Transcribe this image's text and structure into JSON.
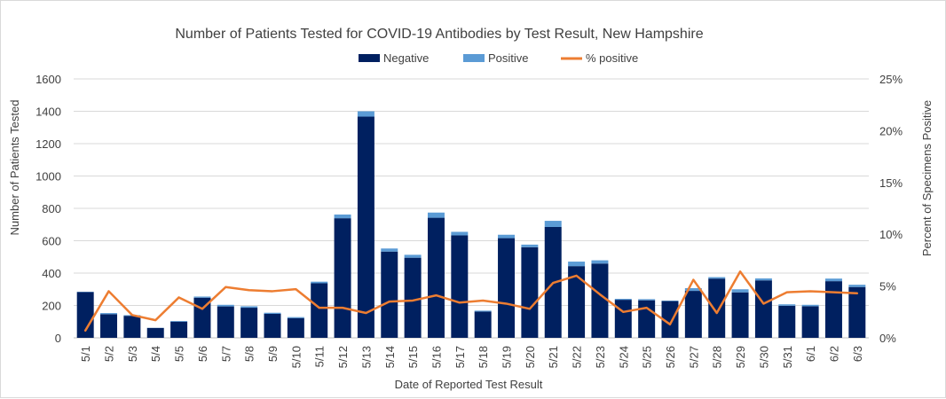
{
  "chart_data": {
    "type": "bar",
    "stacked": true,
    "title": "Number of Patients Tested for COVID-19 Antibodies by Test Result, New Hampshire",
    "xlabel": "Date of Reported Test Result",
    "ylabel": "Number of Patients Tested",
    "y2label": "Percent of Specimens Positive",
    "ylim": [
      0,
      1600
    ],
    "y_ticks": [
      "0",
      "200",
      "400",
      "600",
      "800",
      "1000",
      "1200",
      "1400",
      "1600"
    ],
    "y2lim": [
      0,
      25
    ],
    "y2_ticks": [
      "0%",
      "5%",
      "10%",
      "15%",
      "20%",
      "25%"
    ],
    "legend_position": "top-center",
    "grid": true,
    "categories": [
      "5/1",
      "5/2",
      "5/3",
      "5/4",
      "5/5",
      "5/6",
      "5/7",
      "5/8",
      "5/9",
      "5/10",
      "5/11",
      "5/12",
      "5/13",
      "5/14",
      "5/15",
      "5/16",
      "5/17",
      "5/18",
      "5/19",
      "5/20",
      "5/21",
      "5/22",
      "5/23",
      "5/24",
      "5/25",
      "5/26",
      "5/27",
      "5/28",
      "5/29",
      "5/30",
      "5/31",
      "6/1",
      "6/2",
      "6/3"
    ],
    "series": [
      {
        "name": "Negative",
        "type": "bar",
        "color": "#002060",
        "values": [
          283,
          146,
          136,
          61,
          100,
          248,
          194,
          186,
          148,
          122,
          337,
          739,
          1367,
          533,
          495,
          742,
          633,
          162,
          616,
          560,
          685,
          443,
          459,
          235,
          232,
          227,
          290,
          366,
          281,
          355,
          198,
          195,
          350,
          314
        ]
      },
      {
        "name": "Positive",
        "type": "bar",
        "color": "#5b9bd5",
        "values": [
          2,
          7,
          4,
          1,
          4,
          7,
          10,
          9,
          7,
          6,
          10,
          23,
          33,
          19,
          18,
          32,
          22,
          6,
          21,
          16,
          38,
          28,
          20,
          6,
          7,
          3,
          17,
          9,
          19,
          12,
          9,
          9,
          16,
          14
        ]
      },
      {
        "name": "% positive",
        "type": "line",
        "axis": "secondary",
        "color": "#ed7d31",
        "values": [
          0.7,
          4.5,
          2.2,
          1.7,
          3.9,
          2.8,
          4.9,
          4.6,
          4.5,
          4.7,
          2.9,
          2.9,
          2.4,
          3.5,
          3.6,
          4.1,
          3.4,
          3.6,
          3.3,
          2.8,
          5.3,
          6.0,
          4.2,
          2.5,
          2.9,
          1.3,
          5.6,
          2.4,
          6.4,
          3.3,
          4.4,
          4.5,
          4.4,
          4.3
        ]
      }
    ]
  }
}
